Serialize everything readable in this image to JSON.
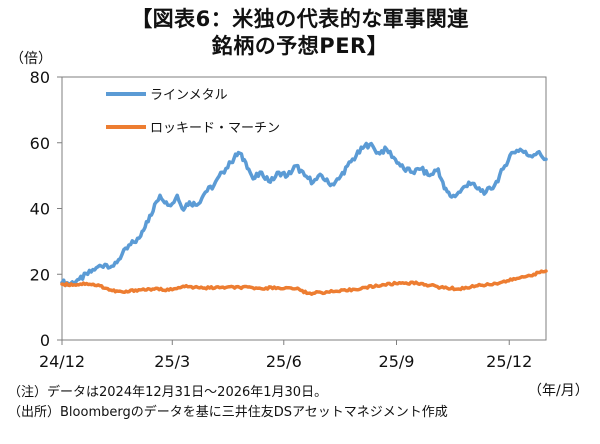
{
  "header": {
    "title_line1": "【図表6：米独の代表的な軍事関連",
    "title_line2": "銘柄の予想PER】"
  },
  "notes": {
    "line1": "（注）データは2024年12月31日～2026年1月30日。",
    "line2": "（出所）Bloombergのデータを基に三井住友DSアセットマネジメント作成"
  },
  "chart_data": {
    "type": "line",
    "y_unit": "（倍）",
    "x_unit": "（年/月）",
    "ylim": [
      0,
      80
    ],
    "yticks": [
      0,
      20,
      40,
      60,
      80
    ],
    "xlim": [
      "2024-12-31",
      "2026-01-30"
    ],
    "xticks": [
      {
        "date": "2024-12-31",
        "label": "24/12"
      },
      {
        "date": "2025-03-31",
        "label": "25/3"
      },
      {
        "date": "2025-06-30",
        "label": "25/6"
      },
      {
        "date": "2025-09-30",
        "label": "25/9"
      },
      {
        "date": "2025-12-31",
        "label": "25/12"
      }
    ],
    "grid": false,
    "legend_position": "top-left",
    "series": [
      {
        "name": "ラインメタル",
        "color": "#5b9bd5",
        "points": [
          [
            "2024-12-31",
            17.5
          ],
          [
            "2025-01-07",
            17.2
          ],
          [
            "2025-01-14",
            18.5
          ],
          [
            "2025-01-21",
            20
          ],
          [
            "2025-01-28",
            22
          ],
          [
            "2025-02-04",
            23
          ],
          [
            "2025-02-11",
            22.5
          ],
          [
            "2025-02-18",
            26
          ],
          [
            "2025-02-25",
            29
          ],
          [
            "2025-03-04",
            31
          ],
          [
            "2025-03-10",
            36
          ],
          [
            "2025-03-14",
            38
          ],
          [
            "2025-03-18",
            42
          ],
          [
            "2025-03-21",
            44
          ],
          [
            "2025-03-26",
            42
          ],
          [
            "2025-03-31",
            41.5
          ],
          [
            "2025-04-04",
            44
          ],
          [
            "2025-04-08",
            40
          ],
          [
            "2025-04-14",
            42
          ],
          [
            "2025-04-20",
            41
          ],
          [
            "2025-04-27",
            45
          ],
          [
            "2025-05-04",
            47
          ],
          [
            "2025-05-11",
            51
          ],
          [
            "2025-05-18",
            54
          ],
          [
            "2025-05-24",
            57
          ],
          [
            "2025-05-30",
            54
          ],
          [
            "2025-06-05",
            49
          ],
          [
            "2025-06-12",
            51
          ],
          [
            "2025-06-19",
            48
          ],
          [
            "2025-06-26",
            51
          ],
          [
            "2025-07-03",
            50
          ],
          [
            "2025-07-10",
            53
          ],
          [
            "2025-07-17",
            50
          ],
          [
            "2025-07-24",
            48
          ],
          [
            "2025-07-31",
            50
          ],
          [
            "2025-08-07",
            47
          ],
          [
            "2025-08-14",
            49
          ],
          [
            "2025-08-21",
            53
          ],
          [
            "2025-08-28",
            56
          ],
          [
            "2025-09-04",
            59
          ],
          [
            "2025-09-08",
            59.5
          ],
          [
            "2025-09-15",
            57
          ],
          [
            "2025-09-22",
            58
          ],
          [
            "2025-09-29",
            55
          ],
          [
            "2025-10-06",
            52
          ],
          [
            "2025-10-13",
            51
          ],
          [
            "2025-10-20",
            52
          ],
          [
            "2025-10-27",
            50
          ],
          [
            "2025-11-03",
            52
          ],
          [
            "2025-11-08",
            46
          ],
          [
            "2025-11-14",
            43.5
          ],
          [
            "2025-11-21",
            45
          ],
          [
            "2025-11-28",
            48
          ],
          [
            "2025-12-05",
            46
          ],
          [
            "2025-12-12",
            45
          ],
          [
            "2025-12-19",
            47
          ],
          [
            "2025-12-26",
            52
          ],
          [
            "2026-01-02",
            57
          ],
          [
            "2026-01-09",
            58
          ],
          [
            "2026-01-16",
            56
          ],
          [
            "2026-01-23",
            57
          ],
          [
            "2026-01-30",
            55
          ]
        ]
      },
      {
        "name": "ロッキード・マーチン",
        "color": "#ed7d31",
        "points": [
          [
            "2024-12-31",
            17
          ],
          [
            "2025-01-10",
            16.8
          ],
          [
            "2025-01-20",
            17.2
          ],
          [
            "2025-01-31",
            16.5
          ],
          [
            "2025-02-10",
            15
          ],
          [
            "2025-02-20",
            14.5
          ],
          [
            "2025-03-01",
            15.2
          ],
          [
            "2025-03-15",
            15.5
          ],
          [
            "2025-03-31",
            15.3
          ],
          [
            "2025-04-10",
            16.2
          ],
          [
            "2025-04-25",
            15.8
          ],
          [
            "2025-05-10",
            16
          ],
          [
            "2025-05-25",
            16
          ],
          [
            "2025-06-10",
            15.8
          ],
          [
            "2025-06-25",
            15.9
          ],
          [
            "2025-07-10",
            15.6
          ],
          [
            "2025-07-20",
            14.2
          ],
          [
            "2025-08-05",
            14.6
          ],
          [
            "2025-08-20",
            15
          ],
          [
            "2025-09-05",
            16
          ],
          [
            "2025-09-20",
            16.8
          ],
          [
            "2025-10-05",
            17.4
          ],
          [
            "2025-10-20",
            17.2
          ],
          [
            "2025-11-05",
            16
          ],
          [
            "2025-11-20",
            15.5
          ],
          [
            "2025-12-05",
            16.5
          ],
          [
            "2025-12-20",
            17.2
          ],
          [
            "2026-01-05",
            18.5
          ],
          [
            "2026-01-20",
            20
          ],
          [
            "2026-01-30",
            21
          ]
        ]
      }
    ]
  }
}
